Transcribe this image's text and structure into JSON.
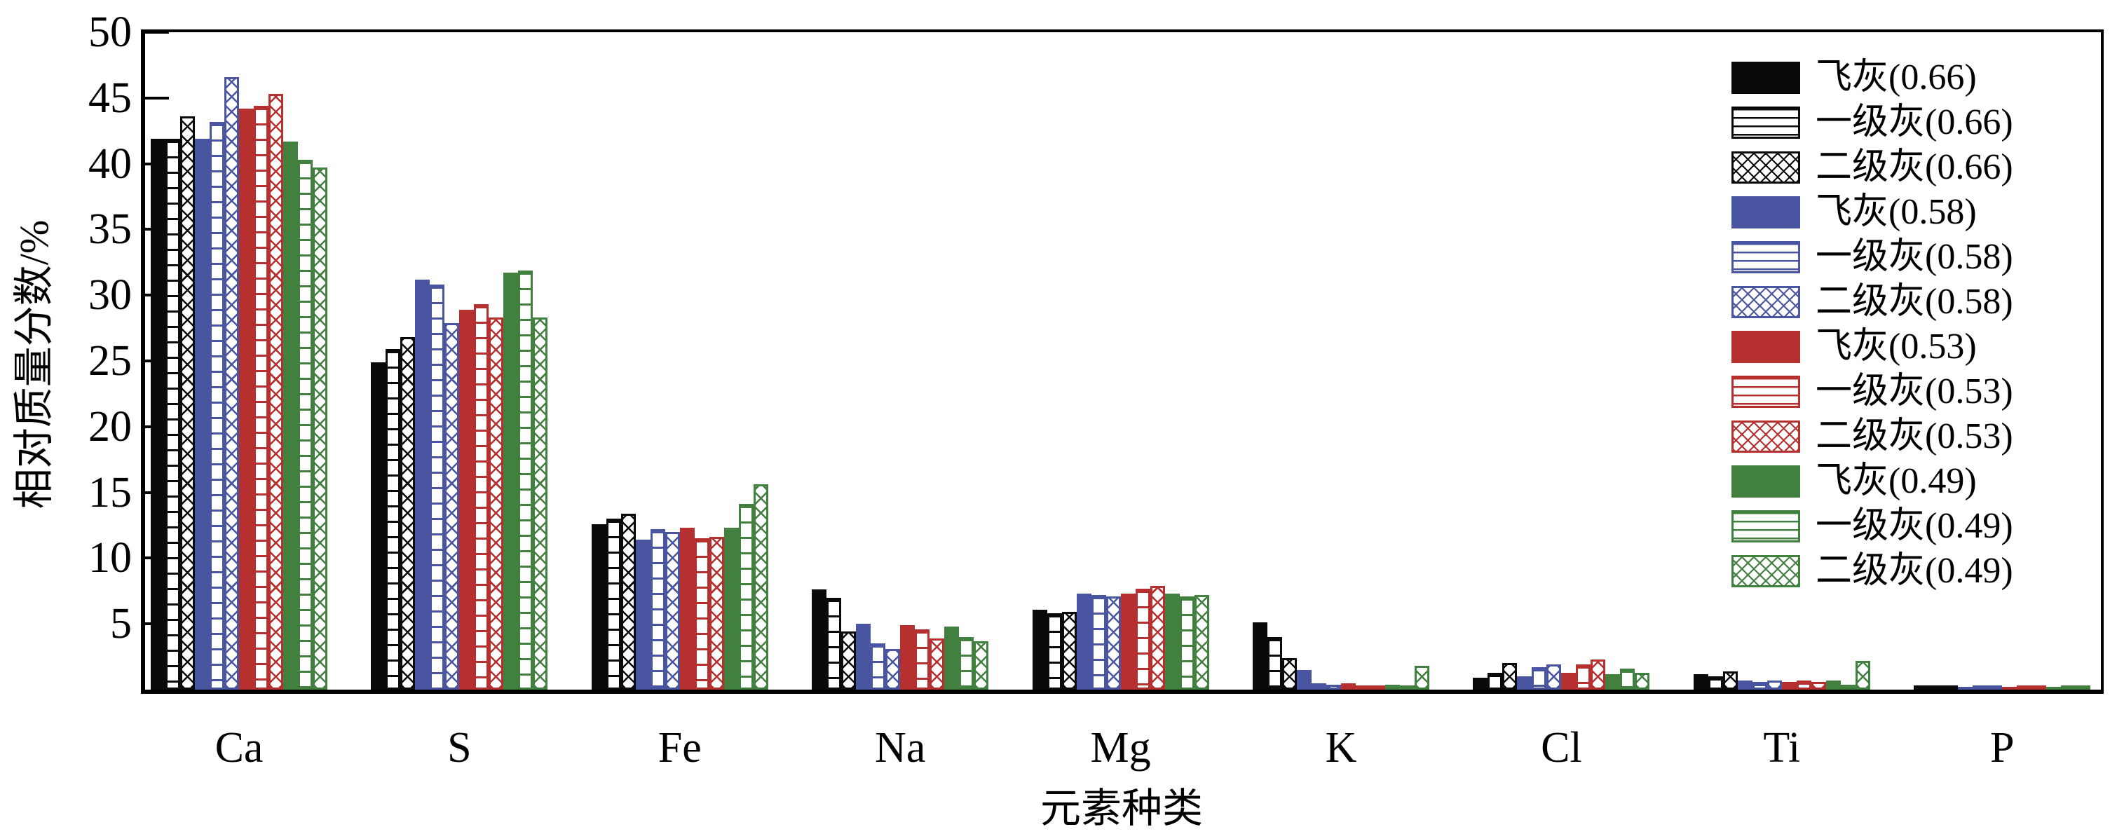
{
  "chart_data": {
    "type": "bar",
    "title": "",
    "xlabel": "元素种类",
    "ylabel": "相对质量分数/%",
    "ylim": [
      0,
      50
    ],
    "yticks": [
      5,
      10,
      15,
      20,
      25,
      30,
      35,
      40,
      45,
      50
    ],
    "grid": false,
    "legend_position": "top-right",
    "axis_color": "#000000",
    "categories": [
      "Ca",
      "S",
      "Fe",
      "Na",
      "Mg",
      "K",
      "Cl",
      "Ti",
      "P"
    ],
    "series": [
      {
        "name": "飞灰(0.66)",
        "color": "#0a0a0a",
        "pattern": "solid",
        "values": [
          41.9,
          24.9,
          12.6,
          7.6,
          6.1,
          5.1,
          0.9,
          1.2,
          0.3
        ]
      },
      {
        "name": "一级灰(0.66)",
        "color": "#0a0a0a",
        "pattern": "hlines",
        "values": [
          41.9,
          25.9,
          13.0,
          7.0,
          5.8,
          4.0,
          1.3,
          1.0,
          0.2
        ]
      },
      {
        "name": "二级灰(0.66)",
        "color": "#0a0a0a",
        "pattern": "crosshatch",
        "values": [
          43.6,
          26.8,
          13.4,
          4.4,
          5.9,
          2.4,
          2.0,
          1.4,
          0.2
        ]
      },
      {
        "name": "飞灰(0.58)",
        "color": "#4a55a2",
        "pattern": "solid",
        "values": [
          41.9,
          31.2,
          11.4,
          5.0,
          7.3,
          1.5,
          1.0,
          0.7,
          0.2
        ]
      },
      {
        "name": "一级灰(0.58)",
        "color": "#4a55a2",
        "pattern": "hlines",
        "values": [
          43.2,
          30.8,
          12.2,
          3.5,
          7.2,
          0.5,
          1.7,
          0.6,
          0.1
        ]
      },
      {
        "name": "二级灰(0.58)",
        "color": "#4a55a2",
        "pattern": "crosshatch",
        "values": [
          46.6,
          27.9,
          12.0,
          3.1,
          7.1,
          0.4,
          1.9,
          0.7,
          0.1
        ]
      },
      {
        "name": "飞灰(0.53)",
        "color": "#b5302e",
        "pattern": "solid",
        "values": [
          44.2,
          28.9,
          12.3,
          4.9,
          7.3,
          0.5,
          1.3,
          0.6,
          0.2
        ]
      },
      {
        "name": "一级灰(0.53)",
        "color": "#b5302e",
        "pattern": "hlines",
        "values": [
          44.4,
          29.3,
          11.5,
          4.6,
          7.7,
          0.3,
          1.9,
          0.7,
          0.1
        ]
      },
      {
        "name": "二级灰(0.53)",
        "color": "#b5302e",
        "pattern": "crosshatch",
        "values": [
          45.3,
          28.3,
          11.6,
          3.9,
          7.9,
          0.3,
          2.3,
          0.6,
          0.1
        ]
      },
      {
        "name": "飞灰(0.49)",
        "color": "#41803e",
        "pattern": "solid",
        "values": [
          41.7,
          31.7,
          12.3,
          4.8,
          7.3,
          0.4,
          1.2,
          0.7,
          0.2
        ]
      },
      {
        "name": "一级灰(0.49)",
        "color": "#41803e",
        "pattern": "hlines",
        "values": [
          40.3,
          31.9,
          14.1,
          4.0,
          7.1,
          0.3,
          1.6,
          0.4,
          0.1
        ]
      },
      {
        "name": "二级灰(0.49)",
        "color": "#41803e",
        "pattern": "crosshatch",
        "values": [
          39.7,
          28.3,
          15.6,
          3.7,
          7.2,
          1.8,
          1.3,
          2.2,
          0.1
        ]
      }
    ]
  }
}
